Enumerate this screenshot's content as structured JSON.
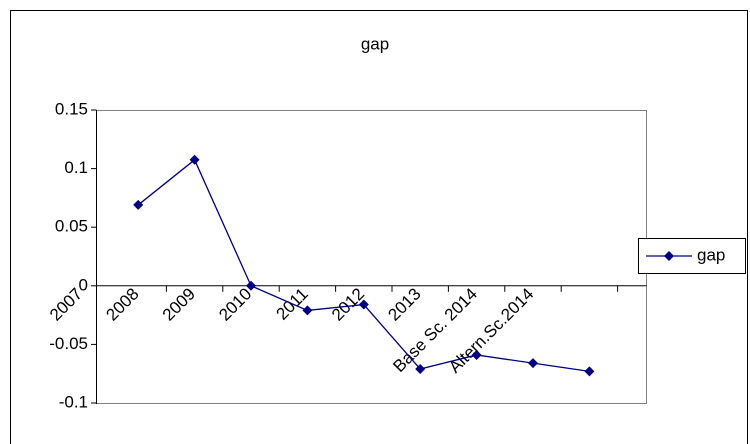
{
  "chart_data": {
    "type": "line",
    "title": "gap",
    "categories": [
      "2007",
      "2008",
      "2009",
      "2010",
      "2011",
      "2012",
      "2013",
      "Base Sc. 2014",
      "Altern.Sc.2014"
    ],
    "series": [
      {
        "name": "gap",
        "color": "#000080",
        "values": [
          0.069,
          0.1075,
          0,
          -0.021,
          -0.016,
          -0.071,
          -0.059,
          -0.066,
          -0.073
        ]
      }
    ],
    "ylim": [
      -0.1,
      0.15
    ],
    "yticks": [
      -0.1,
      -0.05,
      0,
      0.05,
      0.1,
      0.15
    ],
    "grid": false,
    "legend": "right"
  }
}
